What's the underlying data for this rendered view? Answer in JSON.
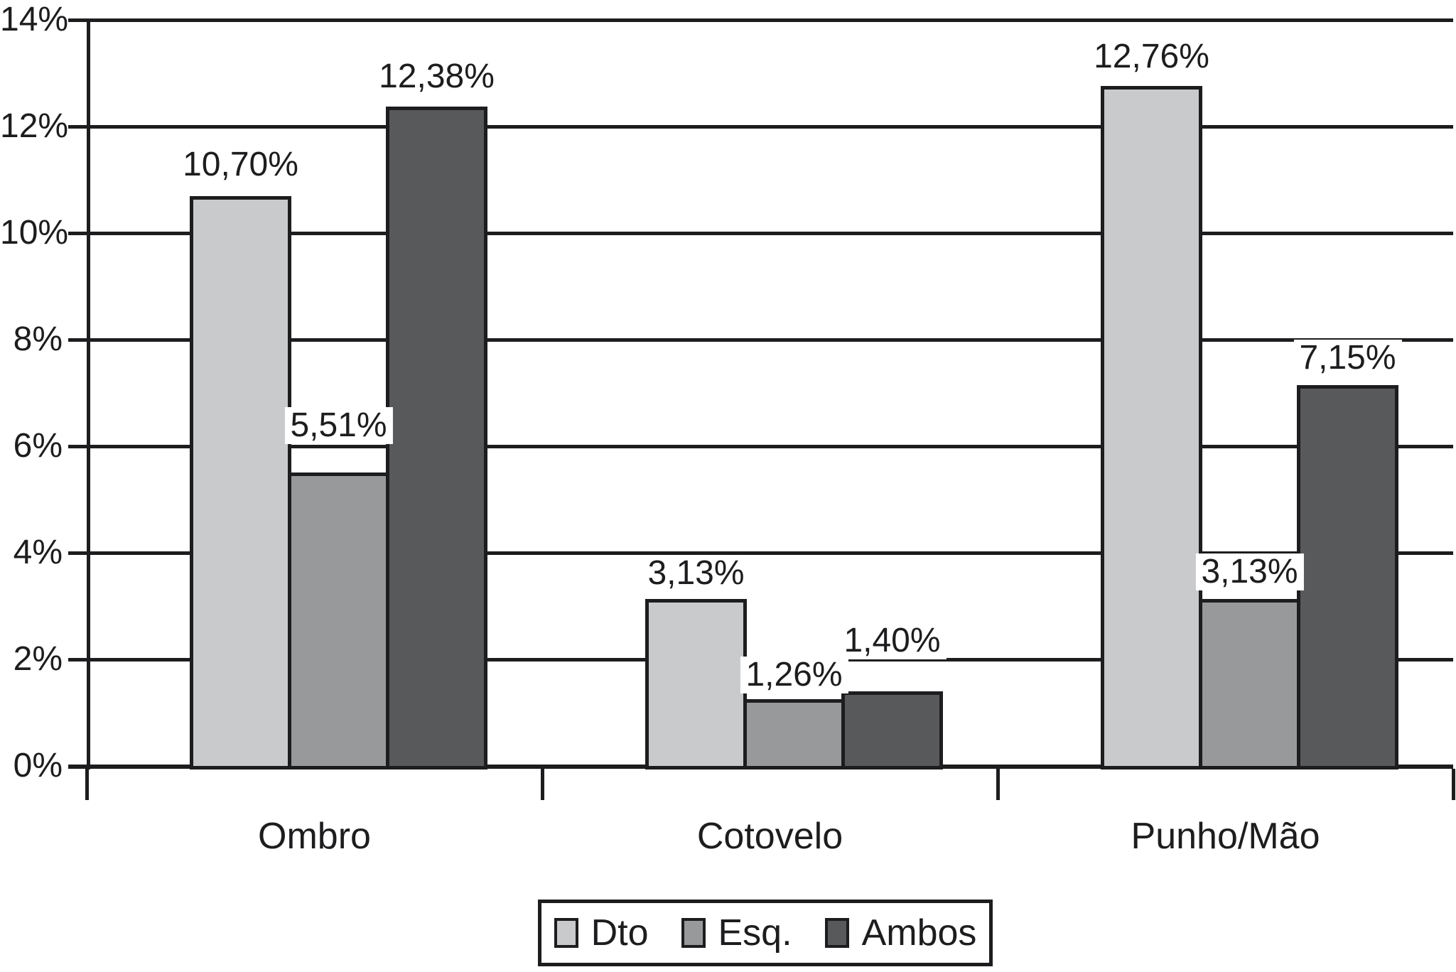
{
  "chart_data": {
    "type": "bar",
    "title": "",
    "xlabel": "",
    "ylabel": "",
    "categories": [
      "Ombro",
      "Cotovelo",
      "Punho/Mão"
    ],
    "series": [
      {
        "name": "Dto",
        "color": "#c9cacb",
        "values": [
          10.7,
          3.13,
          12.76
        ],
        "value_labels": [
          "10,70%",
          "3,13%",
          "12,76%"
        ],
        "label_gaps": [
          18,
          10,
          15
        ]
      },
      {
        "name": "Esq.",
        "color": "#97999b",
        "values": [
          5.51,
          1.26,
          3.13
        ],
        "value_labels": [
          "5,51%",
          "1,26%",
          "3,13%"
        ],
        "label_gaps": [
          40,
          8,
          12
        ]
      },
      {
        "name": "Ambos",
        "color": "#58595b",
        "values": [
          12.38,
          1.4,
          7.15
        ],
        "value_labels": [
          "12,38%",
          "1,40%",
          "7,15%"
        ],
        "label_gaps": [
          16,
          45,
          12
        ]
      }
    ],
    "y_axis": {
      "min": 0,
      "max": 14,
      "ticks": [
        {
          "value": 0,
          "label": "0%"
        },
        {
          "value": 2,
          "label": "2%"
        },
        {
          "value": 4,
          "label": "4%"
        },
        {
          "value": 6,
          "label": "6%"
        },
        {
          "value": 8,
          "label": "8%"
        },
        {
          "value": 10,
          "label": "10%"
        },
        {
          "value": 12,
          "label": "12%"
        },
        {
          "value": 14,
          "label": "14%"
        }
      ]
    },
    "grid": true,
    "legend_position": "bottom",
    "decimal_separator": ",",
    "colors": {
      "line": "#1d1d1f",
      "background": "#ffffff",
      "text": "#1d1d1f"
    }
  }
}
